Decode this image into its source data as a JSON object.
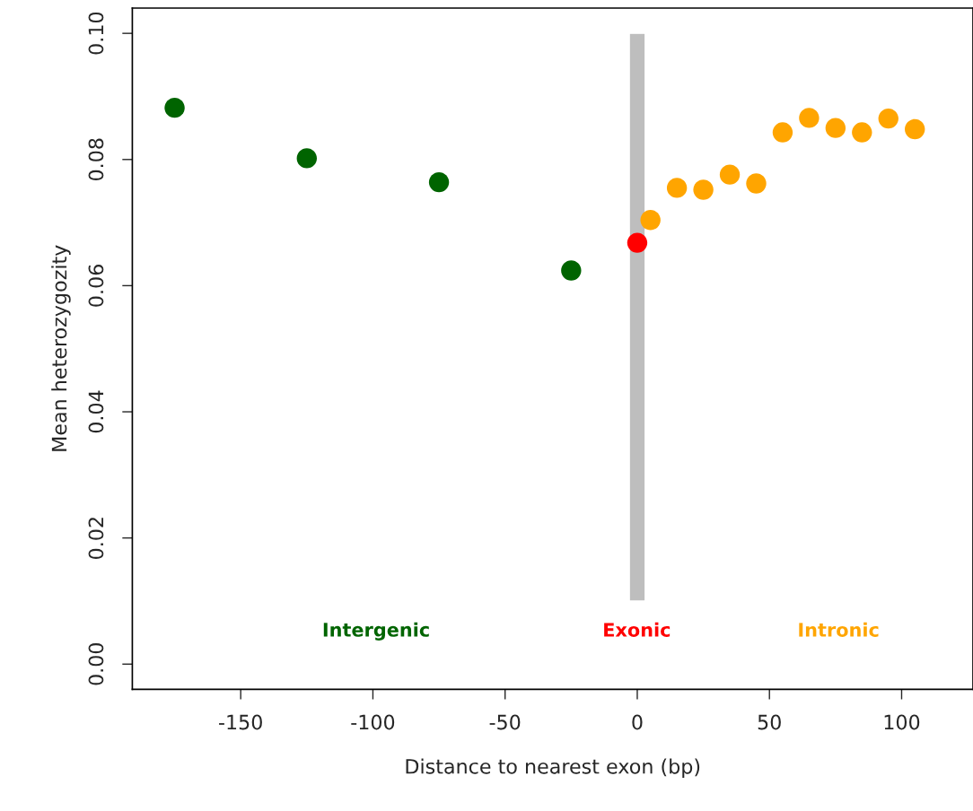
{
  "chart_data": {
    "type": "scatter",
    "xlabel": "Distance to nearest exon (bp)",
    "ylabel": "Mean heterozygozity",
    "xlim": [
      -191,
      127
    ],
    "ylim": [
      -0.004,
      0.104
    ],
    "xticks": [
      -150,
      -100,
      -50,
      0,
      50,
      100
    ],
    "yticks": [
      {
        "value": 0,
        "label": "0.00"
      },
      {
        "value": 0.02,
        "label": "0.02"
      },
      {
        "value": 0.04,
        "label": "0.04"
      },
      {
        "value": 0.06,
        "label": "0.06"
      },
      {
        "value": 0.08,
        "label": "0.08"
      },
      {
        "value": 0.1,
        "label": "0.10"
      }
    ],
    "grid": false,
    "legend": false,
    "marker": "circle",
    "series": [
      {
        "type": "bar",
        "x": [
          0
        ],
        "values": [
          0.09
        ],
        "base": [
          0.01
        ],
        "color": "#bebebe"
      },
      {
        "x": [
          -175,
          -125,
          -75,
          -25
        ],
        "values": [
          0.0882,
          0.0802,
          0.0764,
          0.0624
        ],
        "color": "#006400"
      },
      {
        "x": [
          0
        ],
        "values": [
          0.0668
        ],
        "color": "#ff0000"
      },
      {
        "x": [
          5,
          15,
          25,
          35,
          45,
          55,
          65,
          75,
          85,
          95,
          105
        ],
        "values": [
          0.0704,
          0.0755,
          0.0752,
          0.0776,
          0.0762,
          0.0843,
          0.0866,
          0.085,
          0.0843,
          0.0865,
          0.0848
        ],
        "color": "#ffa500"
      }
    ],
    "annotations": [
      "Intergenic",
      "Exonic",
      "Intronic"
    ]
  }
}
